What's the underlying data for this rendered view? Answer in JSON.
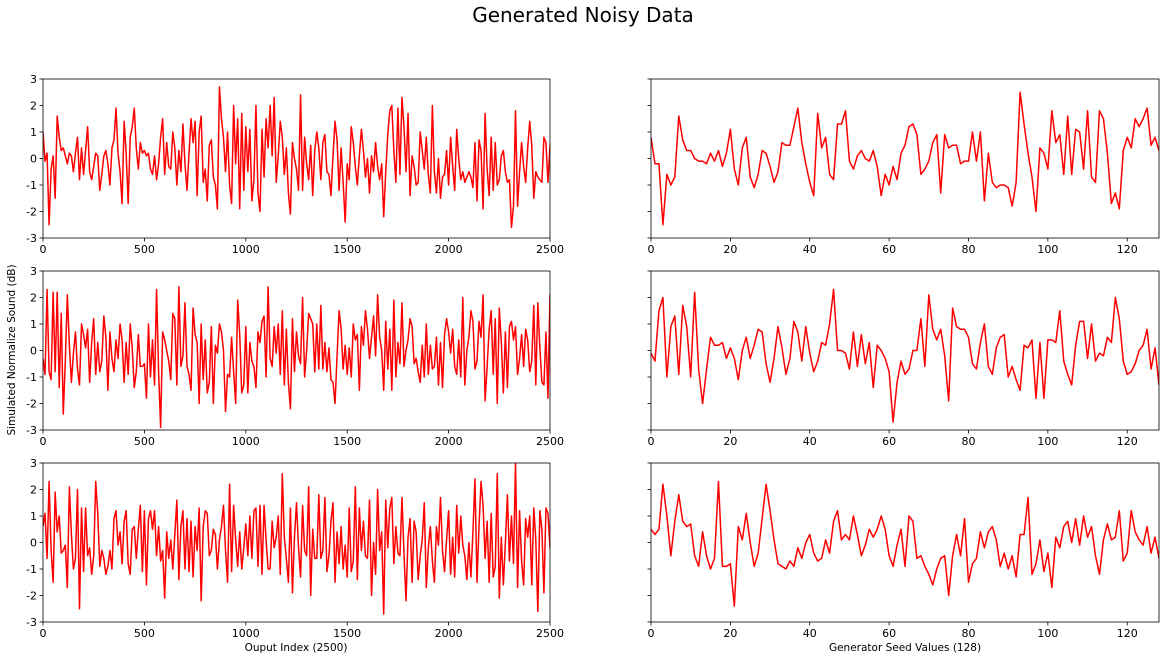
{
  "figure": {
    "title": "Generated Noisy Data",
    "ylabel": "Simulated Normalize Sound (dB)",
    "xlabel_left": "Ouput Index (2500)",
    "xlabel_right": "Generator Seed Values (128)",
    "line_color": "#ff0000"
  },
  "chart_data": [
    {
      "type": "line",
      "row": 1,
      "col": 1,
      "xlim": [
        0,
        2500
      ],
      "ylim": [
        -3,
        3
      ],
      "xticks": [
        0,
        500,
        1000,
        1500,
        2000,
        2500
      ],
      "yticks": [
        -3,
        -2,
        -1,
        0,
        1,
        2,
        3
      ],
      "x_step": 10,
      "values": [
        1.0,
        -0.1,
        0.2,
        -2.5,
        -0.4,
        0.1,
        -1.5,
        1.6,
        0.8,
        0.3,
        0.4,
        0.1,
        -0.2,
        0.2,
        0.1,
        -0.5,
        0.2,
        0.8,
        -0.8,
        0.4,
        -0.6,
        0.3,
        1.2,
        -0.5,
        -0.8,
        -0.3,
        0.2,
        0.1,
        -1.2,
        -0.6,
        0.1,
        0.3,
        -0.2,
        -1.0,
        0.4,
        0.7,
        1.9,
        0.2,
        -0.5,
        -1.7,
        1.4,
        0.2,
        -1.7,
        0.8,
        1.2,
        1.9,
        0.4,
        -0.4,
        0.6,
        0.2,
        0.3,
        0.1,
        0.2,
        -0.4,
        -0.6,
        0.1,
        -0.8,
        -0.2,
        0.8,
        1.5,
        -0.6,
        0.6,
        -0.3,
        -0.4,
        1.0,
        0.4,
        -1.0,
        0.3,
        -0.5,
        1.3,
        -0.2,
        -1.2,
        0.2,
        1.5,
        0.6,
        1.4,
        -1.4,
        1.0,
        1.6,
        -0.9,
        -0.4,
        -1.6,
        0.5,
        0.7,
        -0.7,
        -1.0,
        -1.9,
        2.7,
        1.5,
        0.8,
        -0.5,
        1.0,
        -1.0,
        -1.7,
        2.0,
        -0.2,
        1.5,
        -1.9,
        1.7,
        -1.2,
        1.2,
        -0.5,
        1.1,
        -1.6,
        -0.8,
        2.0,
        -1.3,
        -2.0,
        1.1,
        -0.7,
        1.5,
        0.4,
        2.0,
        0.1,
        2.3,
        -0.9,
        0.1,
        1.4,
        0.8,
        -0.6,
        0.4,
        -1.3,
        -2.1,
        0.6,
        0.0,
        -0.4,
        -1.2,
        2.4,
        -1.2,
        0.8,
        -0.2,
        -0.8,
        0.5,
        -1.4,
        0.3,
        1.0,
        0.4,
        -0.8,
        0.6,
        0.9,
        -0.5,
        -0.6,
        -1.4,
        0.1,
        1.4,
        0.7,
        -1.2,
        0.4,
        -0.9,
        -2.4,
        -0.2,
        -0.8,
        1.2,
        0.6,
        -0.3,
        -1.0,
        0.1,
        1.1,
        0.3,
        -0.7,
        0.0,
        -1.3,
        0.1,
        -0.5,
        0.6,
        -0.3,
        -0.8,
        -0.2,
        -2.2,
        -0.5,
        0.9,
        1.8,
        2.0,
        0.3,
        -0.9,
        1.9,
        -0.6,
        2.3,
        1.2,
        -0.5,
        1.7,
        -1.4,
        0.1,
        -0.3,
        -1.0,
        -0.9,
        1.0,
        0.3,
        -0.4,
        0.8,
        -0.6,
        -1.3,
        2.0,
        -0.5,
        -1.3,
        0.0,
        -1.5,
        -0.7,
        -0.6,
        0.3,
        -1.0,
        0.8,
        -0.3,
        -1.2,
        1.1,
        0.0,
        -0.8,
        -0.5,
        -0.9,
        -0.7,
        -0.5,
        -0.7,
        -1.1,
        0.6,
        -1.6,
        0.7,
        0.3,
        -1.9,
        1.7,
        -0.4,
        -1.4,
        0.8,
        -1.2,
        0.6,
        -1.0,
        -0.8,
        0.1,
        0.3,
        -0.5,
        -0.9,
        -0.8,
        -2.6,
        -1.8,
        1.8,
        -1.8,
        -0.5,
        0.6,
        -0.3,
        -0.9,
        0.4,
        1.4,
        0.5,
        -1.5,
        -0.5,
        -0.7,
        -0.8,
        -0.9,
        0.8,
        0.6,
        -0.9,
        0.5,
        0.8,
        -0.2,
        -0.5,
        0.4,
        1.3
      ]
    },
    {
      "type": "line",
      "row": 1,
      "col": 2,
      "xlim": [
        0,
        128
      ],
      "ylim": [
        -3,
        3
      ],
      "xticks": [
        0,
        20,
        40,
        60,
        80,
        100,
        120
      ],
      "yticks": [
        -3,
        -2,
        -1,
        0,
        1,
        2,
        3
      ],
      "x_step": 1,
      "values": [
        0.8,
        -0.2,
        -0.2,
        -2.5,
        -0.6,
        -1.0,
        -0.7,
        1.6,
        0.7,
        0.3,
        0.3,
        0.0,
        -0.1,
        -0.1,
        -0.2,
        0.2,
        -0.1,
        0.3,
        -0.3,
        0.2,
        1.1,
        -0.4,
        -1.0,
        0.4,
        0.8,
        -0.7,
        -1.1,
        -0.6,
        0.3,
        0.2,
        -0.3,
        -0.9,
        -0.5,
        0.6,
        0.5,
        0.5,
        1.2,
        1.9,
        0.6,
        -0.2,
        -0.9,
        -1.4,
        1.7,
        0.4,
        0.8,
        -0.6,
        -0.8,
        1.3,
        1.3,
        1.8,
        -0.1,
        -0.4,
        0.1,
        0.3,
        0.0,
        -0.1,
        0.3,
        -0.3,
        -1.4,
        -0.6,
        -1.0,
        -0.3,
        -0.8,
        0.2,
        0.5,
        1.2,
        1.3,
        0.9,
        -0.6,
        -0.4,
        -0.1,
        0.6,
        0.9,
        -1.3,
        0.9,
        0.4,
        0.5,
        0.5,
        -0.2,
        -0.1,
        -0.1,
        1.0,
        -0.1,
        1.0,
        -1.6,
        0.2,
        -0.9,
        -1.1,
        -1.0,
        -1.0,
        -1.1,
        -1.8,
        -0.9,
        2.5,
        1.3,
        0.2,
        -0.7,
        -2.0,
        0.4,
        0.2,
        -0.4,
        1.8,
        0.6,
        0.9,
        -0.6,
        1.6,
        -0.6,
        1.1,
        1.0,
        -0.4,
        1.8,
        -0.7,
        -0.9,
        1.8,
        1.5,
        0.2,
        -1.7,
        -1.3,
        -1.9,
        0.3,
        0.8,
        0.4,
        1.5,
        1.2,
        1.5,
        1.9,
        0.5,
        0.8,
        0.3
      ]
    },
    {
      "type": "line",
      "row": 2,
      "col": 1,
      "xlim": [
        0,
        2500
      ],
      "ylim": [
        -3,
        3
      ],
      "xticks": [
        0,
        500,
        1000,
        1500,
        2000,
        2500
      ],
      "yticks": [
        -3,
        -2,
        -1,
        0,
        1,
        2,
        3
      ],
      "x_step": 10,
      "values": [
        -0.3,
        -0.9,
        2.3,
        -0.8,
        -1.1,
        2.2,
        -0.8,
        2.2,
        -1.4,
        1.4,
        -2.4,
        -0.4,
        2.1,
        0.2,
        -1.2,
        -0.1,
        0.7,
        -0.7,
        -1.3,
        1.0,
        0.6,
        0.1,
        0.8,
        -1.2,
        0.3,
        1.2,
        -0.9,
        0.3,
        -0.8,
        -0.4,
        1.3,
        0.5,
        -1.5,
        0.7,
        -0.3,
        -0.8,
        0.4,
        -0.3,
        1.0,
        0.4,
        -1.2,
        0.3,
        -0.9,
        1.0,
        0.1,
        -1.4,
        -0.8,
        0.6,
        -0.6,
        -0.6,
        -0.5,
        -1.8,
        1.0,
        -1.0,
        0.4,
        -1.3,
        2.3,
        -0.8,
        -2.9,
        0.7,
        0.4,
        0.0,
        -0.4,
        -1.1,
        1.4,
        1.2,
        -1.3,
        2.4,
        -0.6,
        -0.2,
        1.8,
        -0.6,
        -0.9,
        -1.5,
        1.6,
        0.6,
        0.3,
        -2.0,
        1.0,
        -1.1,
        0.4,
        -1.6,
        -1.2,
        0.9,
        -2.0,
        0.2,
        -0.1,
        1.0,
        0.7,
        0.0,
        -2.3,
        -0.9,
        -1.0,
        0.5,
        -0.8,
        -2.0,
        1.9,
        0.6,
        -1.6,
        -1.3,
        0.9,
        -1.6,
        0.3,
        -0.4,
        -0.6,
        -1.4,
        0.7,
        0.3,
        1.1,
        1.3,
        -1.0,
        2.4,
        -0.3,
        -0.6,
        0.9,
        -0.1,
        1.0,
        -0.9,
        1.5,
        -1.3,
        0.8,
        -1.2,
        -2.2,
        1.2,
        -0.8,
        0.7,
        -0.2,
        -0.5,
        2.0,
        -1.0,
        0.0,
        1.4,
        1.2,
        1.0,
        -0.8,
        1.0,
        -0.7,
        1.7,
        -0.7,
        0.3,
        -0.8,
        0.1,
        -1.1,
        -1.2,
        -2.0,
        -0.2,
        1.5,
        0.8,
        -0.7,
        0.2,
        -0.9,
        0.1,
        -1.0,
        1.0,
        0.4,
        0.6,
        -1.5,
        0.9,
        0.2,
        1.5,
        0.8,
        -0.3,
        0.5,
        1.3,
        -0.2,
        2.1,
        0.5,
        0.0,
        -1.5,
        1.1,
        -0.7,
        0.8,
        -1.5,
        1.9,
        -1.0,
        0.3,
        -0.5,
        1.8,
        -0.6,
        0.0,
        0.4,
        1.2,
        0.9,
        -0.5,
        -0.3,
        -0.8,
        -1.2,
        0.2,
        -1.0,
        1.0,
        -0.9,
        0.2,
        -0.7,
        -0.6,
        0.5,
        -1.3,
        0.3,
        -1.4,
        0.6,
        1.2,
        0.7,
        -0.1,
        0.8,
        -0.6,
        -0.9,
        0.4,
        -1.0,
        2.0,
        -1.3,
        0.0,
        0.5,
        1.5,
        1.1,
        -0.7,
        -0.4,
        1.1,
        0.5,
        2.1,
        -1.9,
        -0.6,
        0.8,
        1.5,
        -0.9,
        1.2,
        -2.0,
        1.6,
        0.3,
        -1.6,
        0.7,
        -1.4,
        0.9,
        1.1,
        0.4,
        0.9,
        -0.9,
        -0.3,
        0.6,
        -0.6,
        0.8,
        0.4,
        -0.8,
        -0.4,
        1.7,
        -1.3,
        1.8,
        0.1,
        -1.2,
        -1.3,
        0.7,
        -1.8,
        2.1,
        -0.1,
        0.5,
        -0.4,
        -1.8,
        0.8,
        -0.2,
        0.8,
        -3.0,
        2.3,
        0.7,
        2.1,
        0.3
      ]
    },
    {
      "type": "line",
      "row": 2,
      "col": 2,
      "xlim": [
        0,
        128
      ],
      "ylim": [
        -3,
        3
      ],
      "xticks": [
        0,
        20,
        40,
        60,
        80,
        100,
        120
      ],
      "yticks": [
        -3,
        -2,
        -1,
        0,
        1,
        2,
        3
      ],
      "x_step": 1,
      "values": [
        -0.1,
        -0.4,
        1.5,
        2.0,
        -1.0,
        0.9,
        1.3,
        -0.9,
        1.7,
        0.9,
        -1.0,
        2.2,
        -0.7,
        -2.0,
        -0.7,
        0.5,
        0.2,
        0.2,
        0.3,
        -0.3,
        0.1,
        -0.3,
        -1.1,
        0.0,
        0.5,
        -0.3,
        0.2,
        0.8,
        0.7,
        -0.5,
        -1.2,
        -0.3,
        0.9,
        0.1,
        -0.9,
        -0.3,
        1.1,
        0.7,
        -0.4,
        0.9,
        -0.1,
        -0.8,
        -0.4,
        0.3,
        0.2,
        1.0,
        2.3,
        0.0,
        0.0,
        -0.1,
        -0.7,
        0.7,
        -0.6,
        0.6,
        -0.5,
        0.3,
        -1.4,
        0.2,
        0.0,
        -0.3,
        -0.8,
        -2.7,
        -1.2,
        -0.4,
        -0.9,
        -0.7,
        0.0,
        0.0,
        1.2,
        -0.6,
        2.1,
        0.8,
        0.4,
        0.8,
        -0.2,
        -1.9,
        1.6,
        0.9,
        0.8,
        0.8,
        0.5,
        -0.5,
        -0.7,
        0.3,
        1.0,
        -0.6,
        -0.9,
        0.1,
        0.5,
        0.6,
        -1.0,
        -0.6,
        -1.1,
        -1.5,
        0.2,
        0.1,
        0.4,
        -1.8,
        0.3,
        -1.8,
        0.4,
        0.4,
        0.3,
        1.5,
        -0.4,
        -0.9,
        -1.3,
        0.2,
        1.1,
        1.1,
        -0.3,
        1.0,
        -0.4,
        -0.1,
        -0.2,
        0.5,
        0.3,
        2.0,
        1.2,
        -0.4,
        -0.9,
        -0.8,
        -0.5,
        0.0,
        0.2,
        0.8,
        -0.7,
        0.1,
        -1.3,
        -1.4,
        -1.5
      ]
    },
    {
      "type": "line",
      "row": 3,
      "col": 1,
      "xlim": [
        0,
        2500
      ],
      "ylim": [
        -3,
        3
      ],
      "xticks": [
        0,
        500,
        1000,
        1500,
        2000,
        2500
      ],
      "yticks": [
        -3,
        -2,
        -1,
        0,
        1,
        2,
        3
      ],
      "x_step": 10,
      "values": [
        0.6,
        1.1,
        -0.6,
        2.3,
        -0.3,
        -1.5,
        1.9,
        0.4,
        1.0,
        -0.4,
        -0.3,
        -0.1,
        -1.7,
        2.1,
        0.3,
        -1.0,
        -0.6,
        2.0,
        -2.5,
        1.3,
        -1.1,
        1.3,
        -0.5,
        -0.2,
        -1.2,
        -0.5,
        2.3,
        1.1,
        -0.9,
        -0.3,
        -0.6,
        -1.2,
        -0.9,
        -0.3,
        -1.0,
        0.9,
        1.2,
        -0.1,
        0.4,
        -0.8,
        0.8,
        1.2,
        -0.8,
        -1.2,
        0.5,
        0.6,
        -0.6,
        0.5,
        1.4,
        -1.1,
        1.2,
        -1.6,
        0.9,
        1.2,
        0.5,
        1.2,
        -0.5,
        0.6,
        -0.7,
        -0.3,
        -2.1,
        0.4,
        -0.6,
        0.1,
        -1.0,
        0.3,
        1.6,
        -1.4,
        0.6,
        1.2,
        -1.0,
        0.9,
        -1.1,
        0.8,
        -1.3,
        0.6,
        -0.3,
        1.3,
        -2.2,
        0.6,
        1.2,
        1.1,
        -0.5,
        -0.3,
        0.5,
        0.3,
        -1.0,
        0.1,
        0.6,
        1.4,
        -0.3,
        -1.5,
        2.2,
        -1.1,
        1.4,
        0.1,
        -0.9,
        0.4,
        -1.0,
        -0.2,
        0.7,
        -0.5,
        1.0,
        -0.6,
        1.2,
        1.3,
        -0.9,
        1.4,
        -1.2,
        1.4,
        0.1,
        -1.0,
        -1.0,
        0.8,
        -0.2,
        0.2,
        1.0,
        -1.2,
        2.6,
        0.2,
        -0.6,
        -1.5,
        1.3,
        -1.9,
        0.2,
        1.5,
        -0.2,
        -1.3,
        1.4,
        -0.3,
        -0.5,
        2.1,
        -2.0,
        0.5,
        -0.6,
        -0.6,
        1.8,
        -0.6,
        -0.3,
        1.7,
        -1.1,
        -0.5,
        0.8,
        1.5,
        -1.5,
        0.4,
        -0.8,
        0.6,
        -1.0,
        -0.1,
        -1.3,
        1.3,
        -1.1,
        -0.7,
        2.1,
        -1.4,
        1.3,
        -0.3,
        0.8,
        -0.5,
        -0.6,
        1.6,
        -2.0,
        0.0,
        -1.2,
        2.0,
        -0.3,
        0.4,
        -2.7,
        1.6,
        -0.2,
        1.3,
        1.7,
        -0.8,
        0.6,
        -0.4,
        -0.5,
        1.7,
        -0.4,
        -2.2,
        0.2,
        0.9,
        -1.5,
        0.8,
        0.4,
        -1.4,
        -0.5,
        0.1,
        1.5,
        -1.7,
        -0.2,
        0.6,
        -0.7,
        -1.5,
        0.6,
        -0.1,
        1.7,
        -0.3,
        -1.1,
        0.1,
        1.2,
        -1.2,
        0.2,
        -1.3,
        1.4,
        -0.4,
        1.0,
        -0.1,
        -0.5,
        -1.4,
        0.0,
        -1.3,
        0.4,
        2.4,
        -1.5,
        0.6,
        2.3,
        1.4,
        -0.6,
        0.8,
        -1.5,
        1.1,
        -1.3,
        -0.9,
        2.6,
        -2.1,
        0.2,
        -1.6,
        0.0,
        1.8,
        -0.7,
        1.0,
        -0.8,
        3.0,
        -1.7,
        1.2,
        -0.7,
        -1.6,
        0.9,
        0.2,
        1.0,
        -1.6,
        1.3,
        0.1,
        -2.6,
        1.2,
        0.5,
        -1.9,
        1.3,
        1.1,
        -0.2,
        -0.2,
        -0.8,
        -1.8,
        1.0,
        0.1,
        -0.5,
        1.2,
        -1.1,
        0.3,
        1.3,
        -1.1,
        0.4
      ]
    },
    {
      "type": "line",
      "row": 3,
      "col": 2,
      "xlim": [
        0,
        128
      ],
      "ylim": [
        -3,
        3
      ],
      "xticks": [
        0,
        20,
        40,
        60,
        80,
        100,
        120
      ],
      "yticks": [
        -3,
        -2,
        -1,
        0,
        1,
        2,
        3
      ],
      "x_step": 1,
      "values": [
        0.5,
        0.3,
        0.5,
        2.2,
        1.0,
        -0.5,
        0.8,
        1.8,
        0.8,
        0.6,
        0.7,
        -0.5,
        -0.9,
        0.4,
        -0.5,
        -1.0,
        -0.6,
        2.3,
        -0.9,
        -0.9,
        -0.8,
        -2.4,
        0.6,
        0.1,
        1.1,
        0.0,
        -0.9,
        -0.4,
        0.9,
        2.2,
        1.2,
        0.1,
        -0.8,
        -0.9,
        -1.0,
        -0.7,
        -0.9,
        -0.2,
        -0.6,
        0.0,
        0.3,
        -0.4,
        -0.7,
        -0.6,
        0.1,
        -0.4,
        0.8,
        1.2,
        0.1,
        0.3,
        0.1,
        1.0,
        0.3,
        -0.5,
        -0.1,
        0.5,
        0.2,
        0.5,
        1.0,
        0.5,
        -0.5,
        -0.9,
        -0.1,
        0.5,
        -0.9,
        1.0,
        0.8,
        -0.6,
        -0.5,
        -0.9,
        -1.2,
        -1.6,
        -1.0,
        -0.6,
        -0.5,
        -2.0,
        -0.5,
        0.3,
        -0.5,
        0.9,
        -1.5,
        -0.8,
        -0.6,
        0.4,
        -0.2,
        0.4,
        0.6,
        0.1,
        -0.9,
        -0.4,
        -1.0,
        -0.5,
        -1.3,
        0.3,
        0.3,
        1.7,
        -1.2,
        -0.8,
        0.1,
        -1.1,
        -0.4,
        -1.7,
        0.2,
        -0.2,
        0.6,
        0.8,
        0.0,
        0.9,
        -0.1,
        1.0,
        0.2,
        0.6,
        -0.5,
        -1.2,
        0.1,
        0.7,
        0.1,
        0.2,
        1.2,
        -0.7,
        -0.4,
        1.2,
        0.4,
        0.1,
        -0.1,
        0.6,
        -0.4,
        0.2,
        -0.6
      ]
    }
  ]
}
